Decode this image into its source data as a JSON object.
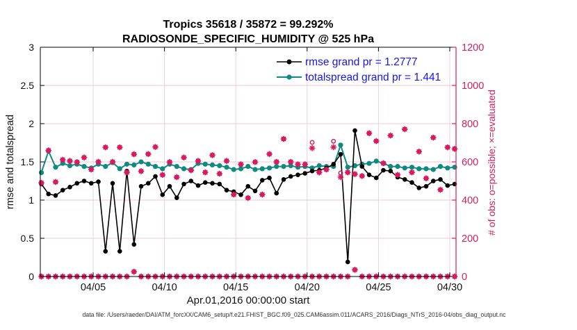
{
  "chart_data": {
    "type": "line",
    "title": "Tropics 35618 / 35872 = 99.292%",
    "subtitle": "RADIOSONDE_SPECIFIC_HUMIDITY @ 525 hPa",
    "xlabel": "Apr.01,2016 00:00:00 start",
    "ylabel_left": "rmse and totalspread",
    "ylabel_right": "# of obs: o=possible; ×=evaluated",
    "footer": "data file: /Users/raeder/DAI/ATM_forcXX/CAM6_setup/f.e21.FHIST_BGC.f09_025.CAM6assim.011/ACARS_2016/Diags_NTrS_2016-04/obs_diag_output.nc",
    "legend": [
      "rmse grand pr = 1.2777",
      "totalspread grand pr = 1.441"
    ],
    "x_tick_labels": [
      "04/05",
      "04/10",
      "04/15",
      "04/20",
      "04/25",
      "04/30"
    ],
    "y_ticks_left": [
      "0",
      "0.5",
      "1",
      "1.5",
      "2",
      "2.5",
      "3"
    ],
    "y_ticks_right": [
      "0",
      "200",
      "400",
      "600",
      "800",
      "1000",
      "1200"
    ],
    "ylim_left": [
      0,
      3
    ],
    "ylim_right": [
      0,
      1200
    ],
    "grid": true,
    "legend_position": "top-right-inside",
    "colors": {
      "rmse": "#000000",
      "totalspread": "#0E8B80",
      "obs": "#D81B60",
      "legend_text": "#1616F0",
      "grid_h": "#F3C5D6",
      "grid_v": "#E6D4DA"
    },
    "series": {
      "rmse": [
        1.21,
        1.08,
        1.06,
        1.13,
        1.17,
        1.22,
        1.25,
        1.22,
        1.24,
        0.33,
        1.22,
        0.33,
        1.38,
        0.42,
        1.18,
        1.22,
        1.31,
        1.07,
        1.18,
        1.03,
        1.21,
        1.25,
        1.19,
        1.23,
        1.22,
        1.21,
        1.13,
        1.11,
        1.07,
        1.18,
        1.12,
        1.26,
        1.29,
        1.09,
        1.27,
        1.31,
        1.33,
        1.35,
        1.38,
        1.39,
        1.42,
        1.47,
        1.6,
        0.19,
        1.91,
        1.44,
        1.33,
        1.29,
        1.39,
        1.38,
        1.3,
        1.27,
        1.23,
        1.16,
        1.18,
        1.25,
        1.27,
        1.19,
        1.21
      ],
      "totalspread": [
        1.36,
        1.64,
        1.43,
        1.48,
        1.45,
        1.47,
        1.44,
        1.42,
        1.47,
        1.44,
        1.49,
        1.41,
        1.47,
        1.46,
        1.5,
        1.47,
        1.44,
        1.41,
        1.47,
        1.44,
        1.41,
        1.4,
        1.48,
        1.47,
        1.46,
        1.45,
        1.43,
        1.4,
        1.41,
        1.44,
        1.4,
        1.41,
        1.42,
        1.44,
        1.44,
        1.45,
        1.43,
        1.44,
        1.42,
        1.45,
        1.44,
        1.44,
        1.72,
        1.43,
        1.45,
        1.47,
        1.48,
        1.51,
        1.48,
        1.44,
        1.44,
        1.42,
        1.43,
        1.41,
        1.41,
        1.4,
        1.44,
        1.42,
        1.43
      ],
      "obs_possible": [
        490,
        660,
        495,
        611,
        605,
        599,
        623,
        560,
        600,
        676,
        600,
        676,
        545,
        640,
        551,
        641,
        678,
        532,
        599,
        520,
        623,
        556,
        605,
        545,
        635,
        538,
        605,
        429,
        587,
        411,
        599,
        429,
        641,
        600,
        720,
        600,
        587,
        587,
        702,
        545,
        560,
        708,
        542,
        545,
        536,
        526,
        750,
        709,
        593,
        738,
        532,
        771,
        545,
        654,
        514,
        727,
        454,
        676,
        668
      ],
      "obs_evaluated": [
        490,
        660,
        495,
        611,
        605,
        599,
        623,
        560,
        600,
        676,
        600,
        676,
        545,
        640,
        551,
        641,
        678,
        532,
        599,
        520,
        623,
        556,
        605,
        545,
        635,
        538,
        605,
        429,
        587,
        411,
        599,
        429,
        641,
        600,
        720,
        600,
        587,
        587,
        672,
        545,
        560,
        677,
        520,
        545,
        536,
        526,
        750,
        709,
        593,
        738,
        532,
        771,
        545,
        654,
        514,
        727,
        454,
        676,
        668
      ],
      "obs_zero_row": [
        0,
        0,
        0,
        0,
        0,
        0,
        0,
        0,
        0,
        0,
        0,
        0,
        0,
        25,
        0,
        0,
        0,
        0,
        0,
        0,
        0,
        0,
        0,
        0,
        0,
        0,
        0,
        0,
        0,
        0,
        0,
        0,
        0,
        0,
        0,
        0,
        0,
        0,
        0,
        0,
        0,
        0,
        0,
        0,
        35,
        0,
        0,
        0,
        0,
        0,
        0,
        0,
        0,
        0,
        0,
        0,
        0,
        0,
        0
      ]
    }
  }
}
